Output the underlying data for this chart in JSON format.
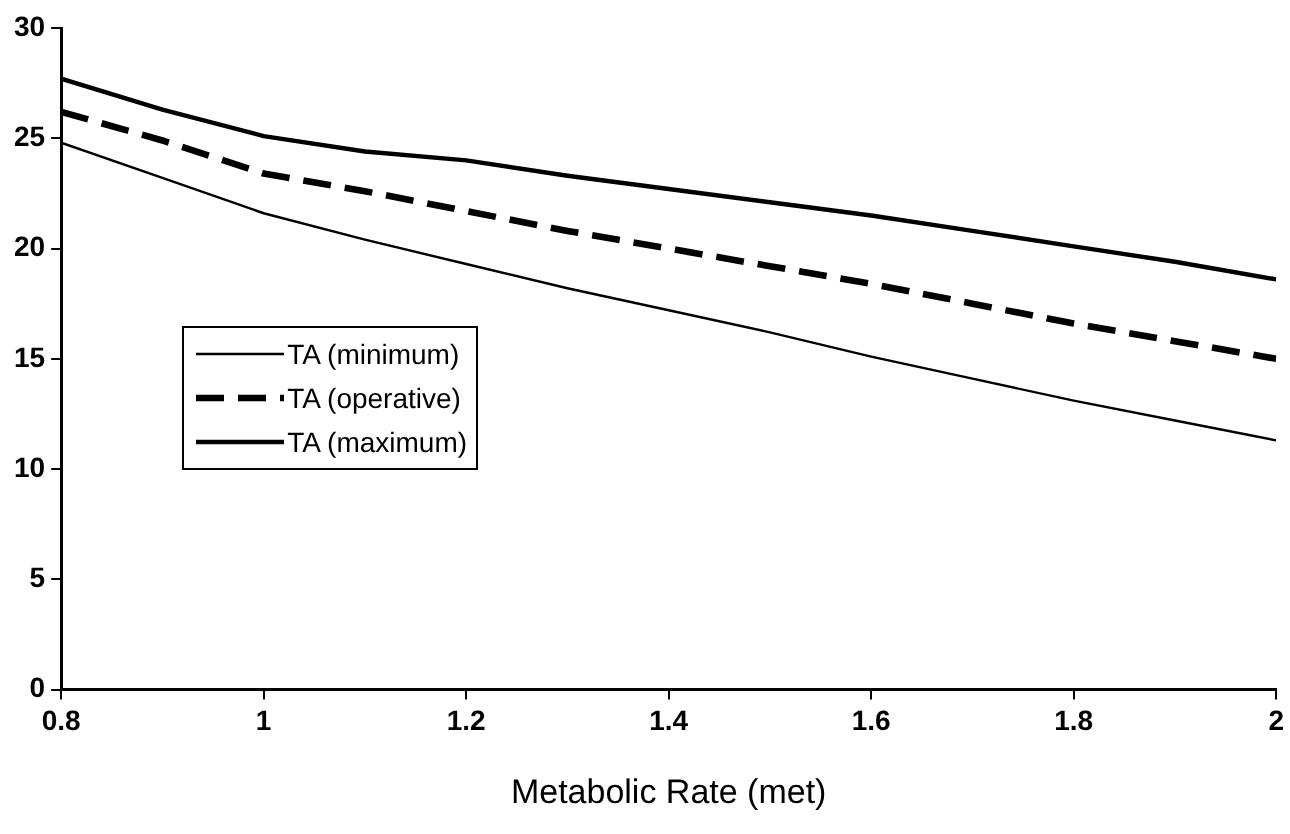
{
  "chart_data": {
    "type": "line",
    "xlabel": "Metabolic Rate (met)",
    "x": [
      0.8,
      0.9,
      1.0,
      1.1,
      1.2,
      1.3,
      1.4,
      1.5,
      1.6,
      1.7,
      1.8,
      1.9,
      2.0
    ],
    "series": [
      {
        "name": "TA (minimum)",
        "color": "#000000",
        "line_style": "solid",
        "values": [
          24.8,
          23.2,
          21.6,
          20.4,
          19.3,
          18.2,
          17.2,
          16.2,
          15.1,
          14.1,
          13.1,
          12.2,
          11.3
        ]
      },
      {
        "name": "TA (operative)",
        "color": "#000000",
        "line_style": "dashed",
        "values": [
          26.2,
          24.9,
          23.4,
          22.6,
          21.7,
          20.8,
          20.0,
          19.2,
          18.4,
          17.5,
          16.6,
          15.8,
          15.0
        ]
      },
      {
        "name": "TA (maximum)",
        "color": "#000000",
        "line_style": "solid",
        "values": [
          27.7,
          26.3,
          25.1,
          24.4,
          24.0,
          23.3,
          22.7,
          22.1,
          21.5,
          20.8,
          20.1,
          19.4,
          18.6
        ]
      }
    ],
    "xlim": [
      0.8,
      2
    ],
    "xticks": [
      0.8,
      1,
      1.2,
      1.4,
      1.6,
      1.8,
      2
    ],
    "ylim": [
      0,
      30
    ],
    "yticks": [
      0,
      5,
      10,
      15,
      20,
      25,
      30
    ],
    "grid": false,
    "legend": "left",
    "marker": "none"
  }
}
